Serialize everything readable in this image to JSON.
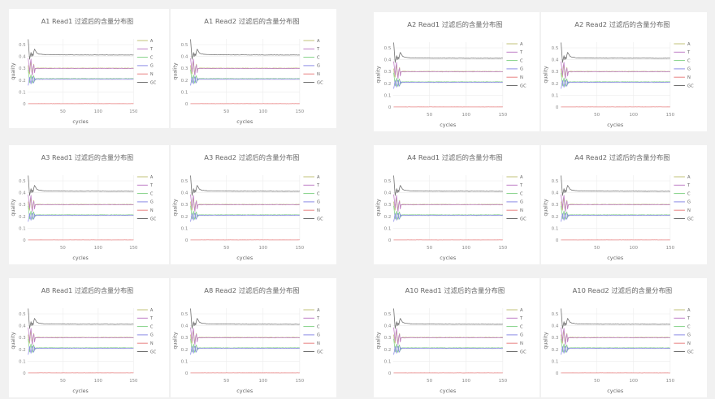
{
  "page": {
    "background": "#f1f1f1",
    "card_background": "#ffffff",
    "title_color": "#666666",
    "tick_color": "#888888",
    "axis_label_color": "#666666",
    "grid_color": "#ececec"
  },
  "chart_data": {
    "type": "line",
    "charts": [
      {
        "id": "a1-read1",
        "title": "A1 Read1 过滤后的含量分布图"
      },
      {
        "id": "a1-read2",
        "title": "A1 Read2 过滤后的含量分布图"
      },
      {
        "id": "a2-read1",
        "title": "A2 Read1 过滤后的含量分布图"
      },
      {
        "id": "a2-read2",
        "title": "A2 Read2 过滤后的含量分布图"
      },
      {
        "id": "a3-read1",
        "title": "A3 Read1 过滤后的含量分布图"
      },
      {
        "id": "a3-read2",
        "title": "A3 Read2 过滤后的含量分布图"
      },
      {
        "id": "a4-read1",
        "title": "A4 Read1 过滤后的含量分布图"
      },
      {
        "id": "a4-read2",
        "title": "A4 Read2 过滤后的含量分布图"
      },
      {
        "id": "a8-read1",
        "title": "A8 Read1 过滤后的含量分布图"
      },
      {
        "id": "a8-read2",
        "title": "A8 Read2 过滤后的含量分布图"
      },
      {
        "id": "a10-read1",
        "title": "A10 Read1 过滤后的含量分布图"
      },
      {
        "id": "a10-read2",
        "title": "A10 Read2 过滤后的含量分布图"
      }
    ],
    "xlabel": "cycles",
    "ylabel": "quality",
    "x_ticks": [
      "50",
      "100",
      "150"
    ],
    "x_tick_values": [
      50,
      100,
      150
    ],
    "y_ticks": [
      "0",
      "0.1",
      "0.2",
      "0.3",
      "0.4",
      "0.5"
    ],
    "y_tick_values": [
      0,
      0.1,
      0.2,
      0.3,
      0.4,
      0.5
    ],
    "xlim": [
      1,
      150
    ],
    "ylim": [
      0,
      0.55
    ],
    "grid": true,
    "legend_position": "right",
    "legend": [
      "A",
      "T",
      "C",
      "G",
      "N",
      "GC"
    ],
    "steady_state_values": {
      "A": 0.3,
      "T": 0.3,
      "C": 0.21,
      "G": 0.21,
      "N": 0.0,
      "GC": 0.41
    },
    "series": [
      {
        "name": "A",
        "color": "#c3c379",
        "keypoints": [
          [
            1,
            0.325
          ],
          [
            2,
            0.27
          ],
          [
            3,
            0.252
          ],
          [
            4,
            0.315
          ],
          [
            5,
            0.358
          ],
          [
            6,
            0.3
          ],
          [
            7,
            0.258
          ],
          [
            8,
            0.305
          ],
          [
            9,
            0.335
          ],
          [
            10,
            0.27
          ],
          [
            11,
            0.294
          ],
          [
            13,
            0.302
          ],
          [
            20,
            0.301
          ],
          [
            150,
            0.301
          ]
        ]
      },
      {
        "name": "T",
        "color": "#bf7fc6",
        "keypoints": [
          [
            1,
            0.385
          ],
          [
            2,
            0.33
          ],
          [
            3,
            0.268
          ],
          [
            4,
            0.345
          ],
          [
            5,
            0.378
          ],
          [
            6,
            0.272
          ],
          [
            7,
            0.24
          ],
          [
            8,
            0.31
          ],
          [
            9,
            0.328
          ],
          [
            10,
            0.262
          ],
          [
            11,
            0.3
          ],
          [
            13,
            0.297
          ],
          [
            20,
            0.298
          ],
          [
            150,
            0.298
          ]
        ]
      },
      {
        "name": "C",
        "color": "#83d186",
        "keypoints": [
          [
            1,
            0.29
          ],
          [
            2,
            0.238
          ],
          [
            3,
            0.178
          ],
          [
            4,
            0.22
          ],
          [
            5,
            0.246
          ],
          [
            6,
            0.19
          ],
          [
            7,
            0.174
          ],
          [
            8,
            0.224
          ],
          [
            9,
            0.238
          ],
          [
            10,
            0.19
          ],
          [
            11,
            0.21
          ],
          [
            13,
            0.213
          ],
          [
            20,
            0.213
          ],
          [
            150,
            0.213
          ]
        ]
      },
      {
        "name": "G",
        "color": "#8b8be6",
        "keypoints": [
          [
            1,
            0.155
          ],
          [
            2,
            0.187
          ],
          [
            3,
            0.225
          ],
          [
            4,
            0.19
          ],
          [
            5,
            0.168
          ],
          [
            6,
            0.214
          ],
          [
            7,
            0.23
          ],
          [
            8,
            0.186
          ],
          [
            9,
            0.176
          ],
          [
            10,
            0.22
          ],
          [
            11,
            0.204
          ],
          [
            13,
            0.209
          ],
          [
            20,
            0.209
          ],
          [
            150,
            0.209
          ]
        ]
      },
      {
        "name": "N",
        "color": "#e98383",
        "keypoints": [
          [
            1,
            0.001
          ],
          [
            150,
            0.001
          ]
        ]
      },
      {
        "name": "GC",
        "color": "#6f6f6f",
        "keypoints": [
          [
            1,
            0.545
          ],
          [
            2,
            0.46
          ],
          [
            3,
            0.376
          ],
          [
            4,
            0.405
          ],
          [
            5,
            0.434
          ],
          [
            6,
            0.4
          ],
          [
            7,
            0.424
          ],
          [
            8,
            0.406
          ],
          [
            9,
            0.44
          ],
          [
            10,
            0.462
          ],
          [
            11,
            0.452
          ],
          [
            13,
            0.43
          ],
          [
            16,
            0.421
          ],
          [
            25,
            0.415
          ],
          [
            60,
            0.413
          ],
          [
            150,
            0.412
          ]
        ]
      }
    ]
  }
}
